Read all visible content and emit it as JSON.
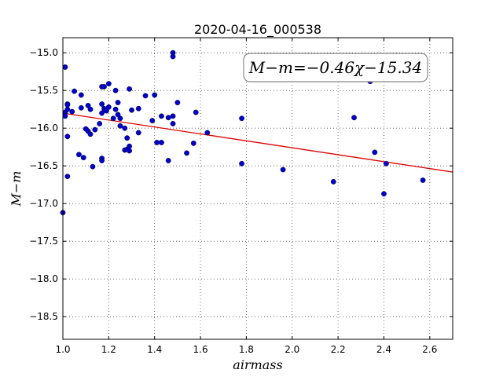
{
  "chart_data": {
    "type": "scatter",
    "title": "2020-04-16_000538",
    "xlabel": "airmass",
    "ylabel": "M−m",
    "xlim": [
      1.0,
      2.7
    ],
    "ylim": [
      -18.8,
      -14.8
    ],
    "y_inverted": true,
    "grid": true,
    "xticks": [
      "1.0",
      "1.2",
      "1.4",
      "1.6",
      "1.8",
      "2.0",
      "2.2",
      "2.4",
      "2.6"
    ],
    "yticks": [
      "−15.0",
      "−15.5",
      "−16.0",
      "−16.5",
      "−17.0",
      "−17.5",
      "−18.0",
      "−18.5"
    ],
    "annotation": "M−m=−0.46χ−15.34",
    "fit": {
      "slope": -0.46,
      "intercept": -15.34,
      "color": "#dd0000"
    },
    "point_color": "#0000cc",
    "points": [
      [
        1.0,
        -17.12
      ],
      [
        1.01,
        -15.19
      ],
      [
        1.01,
        -15.79
      ],
      [
        1.01,
        -15.84
      ],
      [
        1.02,
        -15.68
      ],
      [
        1.02,
        -15.69
      ],
      [
        1.02,
        -15.75
      ],
      [
        1.02,
        -16.11
      ],
      [
        1.02,
        -16.64
      ],
      [
        1.04,
        -15.78
      ],
      [
        1.05,
        -15.51
      ],
      [
        1.07,
        -16.35
      ],
      [
        1.08,
        -15.56
      ],
      [
        1.08,
        -15.73
      ],
      [
        1.09,
        -16.39
      ],
      [
        1.1,
        -16.01
      ],
      [
        1.11,
        -15.7
      ],
      [
        1.11,
        -16.04
      ],
      [
        1.12,
        -16.08
      ],
      [
        1.12,
        -15.75
      ],
      [
        1.13,
        -16.51
      ],
      [
        1.14,
        -16.02
      ],
      [
        1.16,
        -15.94
      ],
      [
        1.17,
        -15.45
      ],
      [
        1.17,
        -15.68
      ],
      [
        1.17,
        -15.8
      ],
      [
        1.17,
        -16.4
      ],
      [
        1.17,
        -16.43
      ],
      [
        1.18,
        -15.45
      ],
      [
        1.18,
        -15.74
      ],
      [
        1.19,
        -15.77
      ],
      [
        1.2,
        -15.41
      ],
      [
        1.2,
        -15.72
      ],
      [
        1.22,
        -15.87
      ],
      [
        1.23,
        -15.75
      ],
      [
        1.23,
        -15.5
      ],
      [
        1.24,
        -15.66
      ],
      [
        1.24,
        -15.82
      ],
      [
        1.25,
        -15.87
      ],
      [
        1.25,
        -15.97
      ],
      [
        1.27,
        -16.29
      ],
      [
        1.27,
        -16.0
      ],
      [
        1.28,
        -16.13
      ],
      [
        1.28,
        -16.28
      ],
      [
        1.29,
        -16.3
      ],
      [
        1.29,
        -16.24
      ],
      [
        1.29,
        -15.48
      ],
      [
        1.3,
        -15.76
      ],
      [
        1.33,
        -15.74
      ],
      [
        1.33,
        -16.06
      ],
      [
        1.36,
        -15.57
      ],
      [
        1.39,
        -15.9
      ],
      [
        1.4,
        -15.56
      ],
      [
        1.41,
        -16.19
      ],
      [
        1.43,
        -16.19
      ],
      [
        1.43,
        -15.84
      ],
      [
        1.46,
        -15.86
      ],
      [
        1.46,
        -16.43
      ],
      [
        1.48,
        -15.0
      ],
      [
        1.48,
        -15.05
      ],
      [
        1.48,
        -15.84
      ],
      [
        1.48,
        -15.94
      ],
      [
        1.5,
        -15.66
      ],
      [
        1.54,
        -16.33
      ],
      [
        1.57,
        -16.2
      ],
      [
        1.58,
        -15.79
      ],
      [
        1.63,
        -16.06
      ],
      [
        1.78,
        -15.87
      ],
      [
        1.78,
        -16.47
      ],
      [
        1.96,
        -16.55
      ],
      [
        2.18,
        -16.71
      ],
      [
        2.27,
        -15.86
      ],
      [
        2.34,
        -15.38
      ],
      [
        2.36,
        -16.32
      ],
      [
        2.4,
        -16.87
      ],
      [
        2.41,
        -16.47
      ],
      [
        2.57,
        -16.69
      ]
    ]
  }
}
